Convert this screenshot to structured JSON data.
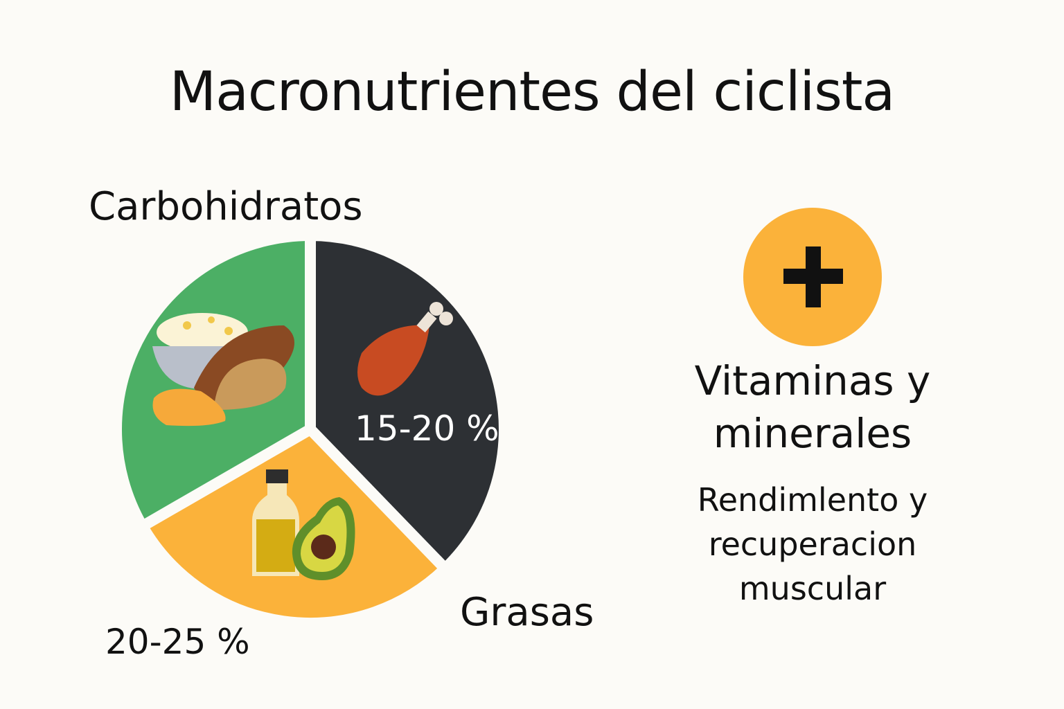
{
  "title": "Macronutrientes del ciclista",
  "pie": {
    "carbs_label": "Carbohidratos",
    "protein_pct": "15-20 %",
    "fats_label": "Grasas",
    "fats_pct": "20-25 %"
  },
  "colors": {
    "carbs": "#4caf65",
    "protein": "#2d3034",
    "fats": "#fbb23a",
    "plus_circle": "#fbb23a"
  },
  "side": {
    "heading": "Vitaminas y minerales",
    "text": "Rendimlento y recuperacion muscular"
  },
  "icons": [
    "rice-bowl-icon",
    "sweet-potato-icon",
    "chicken-drumstick-icon",
    "oil-bottle-icon",
    "avocado-icon",
    "plus-icon"
  ]
}
